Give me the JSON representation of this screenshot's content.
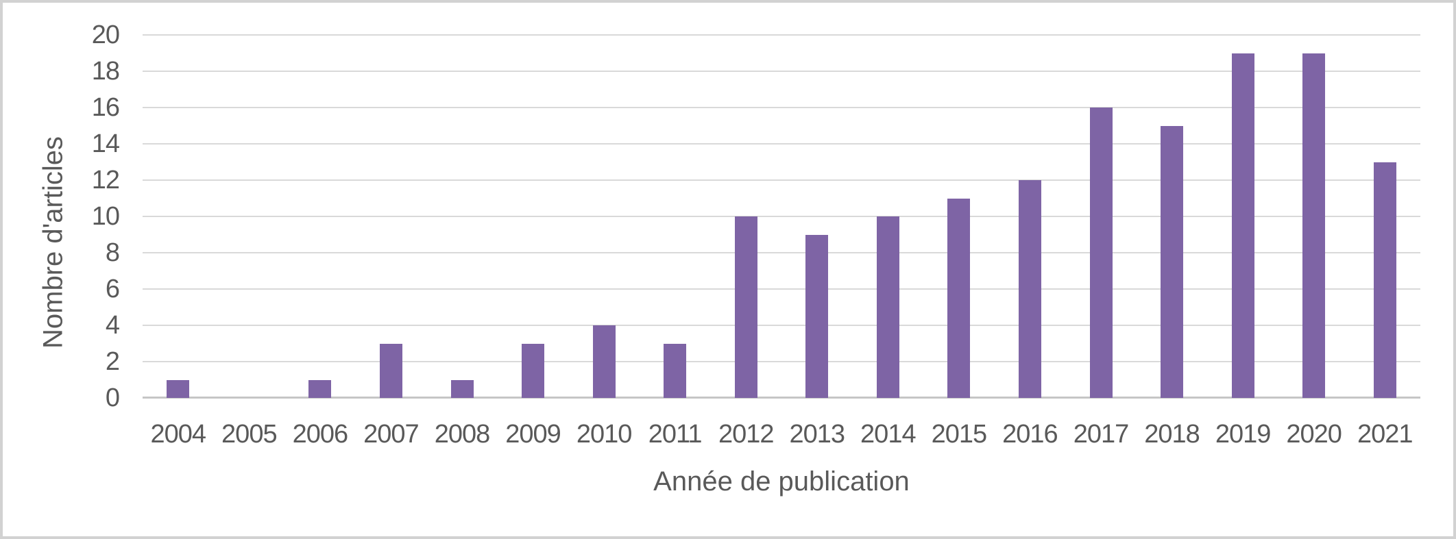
{
  "chart_data": {
    "type": "bar",
    "categories": [
      "2004",
      "2005",
      "2006",
      "2007",
      "2008",
      "2009",
      "2010",
      "2011",
      "2012",
      "2013",
      "2014",
      "2015",
      "2016",
      "2017",
      "2018",
      "2019",
      "2020",
      "2021"
    ],
    "values": [
      1,
      0,
      1,
      3,
      1,
      3,
      4,
      3,
      10,
      9,
      10,
      11,
      12,
      16,
      15,
      19,
      19,
      13
    ],
    "title": "",
    "xlabel": "Année de publication",
    "ylabel": "Nombre d'articles",
    "ylim": [
      0,
      20
    ],
    "ytick_step": 2,
    "ytick_labels": [
      "0",
      "2",
      "4",
      "6",
      "8",
      "10",
      "12",
      "14",
      "16",
      "18",
      "20"
    ],
    "grid": "horizontal",
    "legend": "none",
    "bar_color": "#7e64a5",
    "gridline_color": "#d9d9d9",
    "axis_line_color": "#c6c6c6",
    "text_color": "#595959",
    "figure_border_color": "#d2d2d2"
  }
}
